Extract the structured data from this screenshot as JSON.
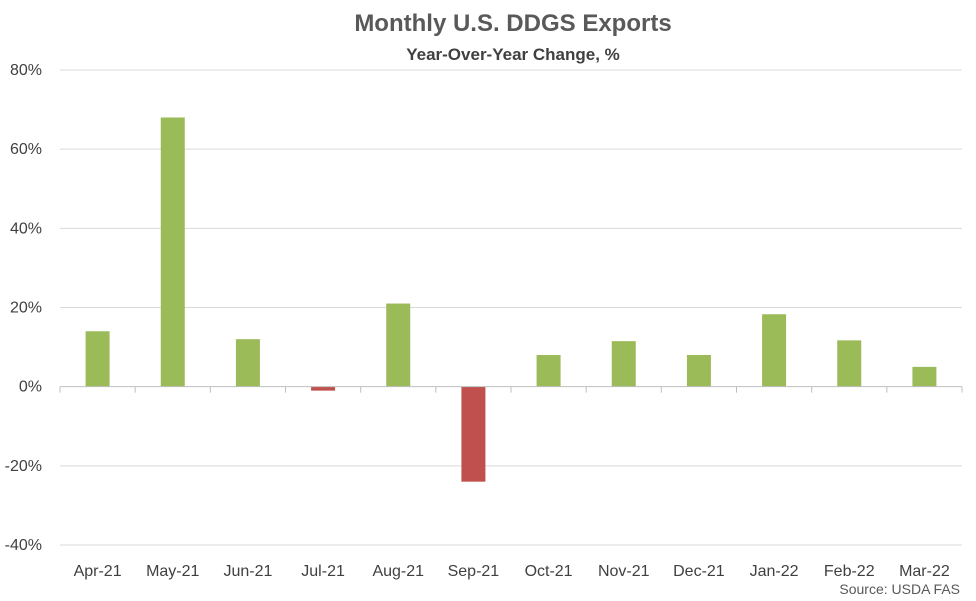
{
  "chart_data": {
    "type": "bar",
    "title": "Monthly U.S. DDGS Exports",
    "subtitle": "Year-Over-Year Change, %",
    "source": "Source: USDA FAS",
    "xlabel": "",
    "ylabel": "",
    "ylim": [
      -40,
      80
    ],
    "yticks": [
      80,
      60,
      40,
      20,
      0,
      -20,
      -40
    ],
    "ytick_labels": [
      "80%",
      "60%",
      "40%",
      "20%",
      "0%",
      "-20%",
      "-40%"
    ],
    "grid": true,
    "legend": "none",
    "categories": [
      "Apr-21",
      "May-21",
      "Jun-21",
      "Jul-21",
      "Aug-21",
      "Sep-21",
      "Oct-21",
      "Nov-21",
      "Dec-21",
      "Jan-22",
      "Feb-22",
      "Mar-22"
    ],
    "values": [
      14,
      68,
      12,
      -1,
      21,
      -24,
      8,
      11.5,
      8,
      18.3,
      11.7,
      5
    ],
    "colors": {
      "positive": "#9bbb59",
      "negative": "#c0504d"
    }
  }
}
